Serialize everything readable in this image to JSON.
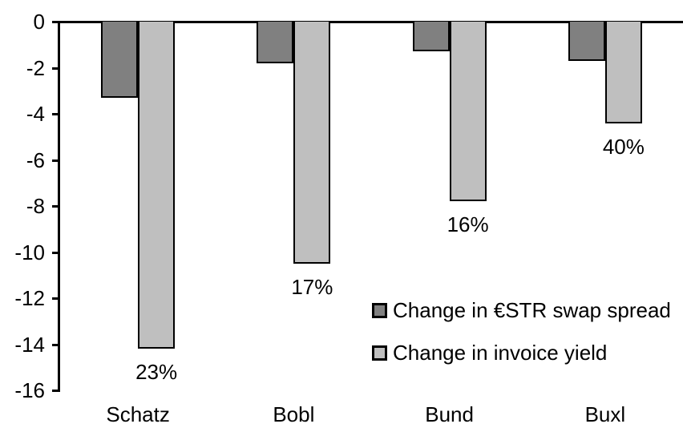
{
  "chart_data": {
    "type": "bar",
    "title": "",
    "xlabel": "",
    "ylabel": "",
    "categories": [
      "Schatz",
      "Bobl",
      "Bund",
      "Buxl"
    ],
    "series": [
      {
        "name": "Change in €STR swap spread",
        "key": "swap-spread",
        "color": "#808080",
        "values": [
          -3.3,
          -1.8,
          -1.3,
          -1.7
        ]
      },
      {
        "name": "Change in invoice yield",
        "key": "invoice-yield",
        "color": "#bfbfbf",
        "values": [
          -14.2,
          -10.5,
          -7.8,
          -4.4
        ]
      }
    ],
    "bar_labels": {
      "series": "Change in invoice yield",
      "values": [
        "23%",
        "17%",
        "16%",
        "40%"
      ]
    },
    "yticks": [
      0,
      -2,
      -4,
      -6,
      -8,
      -10,
      -12,
      -14,
      -16
    ],
    "ytick_labels": [
      "0",
      "-2",
      "-4",
      "-6",
      "-8",
      "-10",
      "-12",
      "-14",
      "-16"
    ],
    "ylim": [
      -16,
      0
    ],
    "grid": false,
    "legend_position": "inside-lower-right",
    "axis_color": "#000000",
    "background_color": "#ffffff"
  }
}
